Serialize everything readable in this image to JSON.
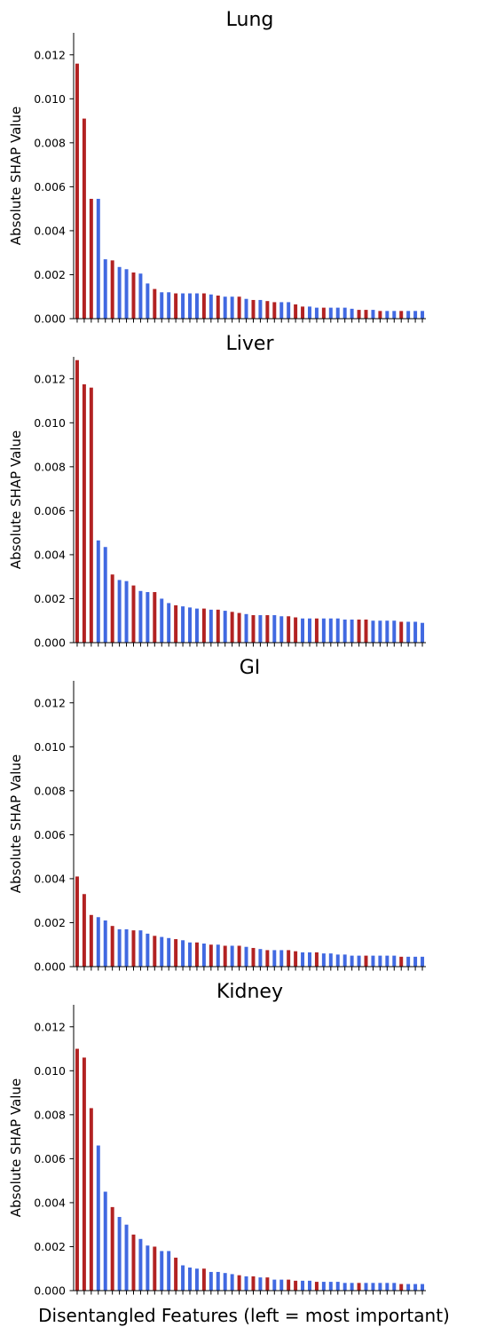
{
  "colors": {
    "red": "#b22222",
    "blue": "#4169e1",
    "axis": "#000000"
  },
  "xlabel": "Disentangled Features (left = most important)",
  "chart_data": [
    {
      "type": "bar",
      "title": "Lung",
      "ylabel": "Absolute SHAP Value",
      "ylim": [
        0,
        0.013
      ],
      "yticks": [
        0.0,
        0.002,
        0.004,
        0.006,
        0.008,
        0.01,
        0.012
      ],
      "ytick_labels": [
        "0.000",
        "0.002",
        "0.004",
        "0.006",
        "0.008",
        "0.010",
        "0.012"
      ],
      "values": [
        0.0116,
        0.0091,
        0.00545,
        0.00545,
        0.0027,
        0.00265,
        0.00235,
        0.00225,
        0.0021,
        0.00205,
        0.0016,
        0.00135,
        0.0012,
        0.0012,
        0.00115,
        0.00115,
        0.00115,
        0.00115,
        0.00115,
        0.0011,
        0.00105,
        0.001,
        0.001,
        0.001,
        0.0009,
        0.00085,
        0.00085,
        0.0008,
        0.00075,
        0.00075,
        0.00075,
        0.00065,
        0.00055,
        0.00055,
        0.0005,
        0.0005,
        0.0005,
        0.0005,
        0.0005,
        0.00045,
        0.0004,
        0.0004,
        0.0004,
        0.00035,
        0.00035,
        0.00035,
        0.00035,
        0.00035,
        0.00035,
        0.00035
      ],
      "colors": [
        "red",
        "red",
        "red",
        "blue",
        "blue",
        "red",
        "blue",
        "blue",
        "red",
        "blue",
        "blue",
        "red",
        "blue",
        "blue",
        "red",
        "blue",
        "blue",
        "blue",
        "red",
        "blue",
        "red",
        "blue",
        "blue",
        "red",
        "blue",
        "red",
        "blue",
        "red",
        "red",
        "blue",
        "blue",
        "red",
        "red",
        "blue",
        "blue",
        "red",
        "blue",
        "blue",
        "blue",
        "blue",
        "red",
        "red",
        "blue",
        "red",
        "blue",
        "blue",
        "red",
        "blue",
        "blue",
        "blue"
      ]
    },
    {
      "type": "bar",
      "title": "Liver",
      "ylabel": "Absolute SHAP Value",
      "ylim": [
        0,
        0.013
      ],
      "yticks": [
        0.0,
        0.002,
        0.004,
        0.006,
        0.008,
        0.01,
        0.012
      ],
      "ytick_labels": [
        "0.000",
        "0.002",
        "0.004",
        "0.006",
        "0.008",
        "0.010",
        "0.012"
      ],
      "values": [
        0.01285,
        0.01175,
        0.0116,
        0.00465,
        0.00435,
        0.0031,
        0.00285,
        0.0028,
        0.0026,
        0.00235,
        0.0023,
        0.0023,
        0.002,
        0.0018,
        0.0017,
        0.00165,
        0.0016,
        0.00155,
        0.00155,
        0.0015,
        0.0015,
        0.00145,
        0.0014,
        0.00135,
        0.0013,
        0.00125,
        0.00125,
        0.00125,
        0.00125,
        0.0012,
        0.0012,
        0.00115,
        0.0011,
        0.0011,
        0.0011,
        0.0011,
        0.0011,
        0.0011,
        0.00105,
        0.00105,
        0.00105,
        0.00105,
        0.001,
        0.001,
        0.001,
        0.001,
        0.00095,
        0.00095,
        0.00095,
        0.0009
      ],
      "colors": [
        "red",
        "red",
        "red",
        "blue",
        "blue",
        "red",
        "blue",
        "blue",
        "red",
        "blue",
        "blue",
        "red",
        "blue",
        "blue",
        "red",
        "blue",
        "blue",
        "blue",
        "red",
        "blue",
        "red",
        "blue",
        "red",
        "red",
        "blue",
        "red",
        "blue",
        "red",
        "blue",
        "blue",
        "red",
        "red",
        "blue",
        "blue",
        "red",
        "blue",
        "blue",
        "blue",
        "blue",
        "blue",
        "red",
        "red",
        "blue",
        "blue",
        "blue",
        "blue",
        "red",
        "blue",
        "blue",
        "blue"
      ]
    },
    {
      "type": "bar",
      "title": "GI",
      "ylabel": "Absolute SHAP Value",
      "ylim": [
        0,
        0.013
      ],
      "yticks": [
        0.0,
        0.002,
        0.004,
        0.006,
        0.008,
        0.01,
        0.012
      ],
      "ytick_labels": [
        "0.000",
        "0.002",
        "0.004",
        "0.006",
        "0.008",
        "0.010",
        "0.012"
      ],
      "values": [
        0.0041,
        0.0033,
        0.00235,
        0.00225,
        0.0021,
        0.00185,
        0.0017,
        0.0017,
        0.00165,
        0.00165,
        0.0015,
        0.0014,
        0.00135,
        0.0013,
        0.00125,
        0.0012,
        0.0011,
        0.0011,
        0.00105,
        0.001,
        0.001,
        0.00095,
        0.00095,
        0.00095,
        0.0009,
        0.00085,
        0.0008,
        0.00075,
        0.00075,
        0.00075,
        0.00075,
        0.0007,
        0.00065,
        0.00065,
        0.00065,
        0.0006,
        0.0006,
        0.00055,
        0.00055,
        0.0005,
        0.0005,
        0.0005,
        0.0005,
        0.0005,
        0.0005,
        0.0005,
        0.00045,
        0.00045,
        0.00045,
        0.00045
      ],
      "colors": [
        "red",
        "red",
        "red",
        "blue",
        "blue",
        "red",
        "blue",
        "blue",
        "red",
        "blue",
        "blue",
        "red",
        "blue",
        "blue",
        "red",
        "blue",
        "blue",
        "red",
        "blue",
        "red",
        "blue",
        "red",
        "blue",
        "red",
        "blue",
        "red",
        "blue",
        "red",
        "blue",
        "blue",
        "red",
        "red",
        "blue",
        "blue",
        "red",
        "blue",
        "blue",
        "blue",
        "blue",
        "blue",
        "blue",
        "red",
        "blue",
        "blue",
        "blue",
        "blue",
        "red",
        "blue",
        "blue",
        "blue"
      ]
    },
    {
      "type": "bar",
      "title": "Kidney",
      "ylabel": "Absolute SHAP Value",
      "ylim": [
        0,
        0.013
      ],
      "yticks": [
        0.0,
        0.002,
        0.004,
        0.006,
        0.008,
        0.01,
        0.012
      ],
      "ytick_labels": [
        "0.000",
        "0.002",
        "0.004",
        "0.006",
        "0.008",
        "0.010",
        "0.012"
      ],
      "values": [
        0.011,
        0.0106,
        0.0083,
        0.0066,
        0.0045,
        0.0038,
        0.00335,
        0.003,
        0.00255,
        0.00235,
        0.00205,
        0.002,
        0.0018,
        0.0018,
        0.0015,
        0.00115,
        0.00105,
        0.001,
        0.001,
        0.00085,
        0.00085,
        0.0008,
        0.00075,
        0.0007,
        0.00065,
        0.00065,
        0.0006,
        0.0006,
        0.0005,
        0.0005,
        0.0005,
        0.00045,
        0.00045,
        0.00045,
        0.0004,
        0.0004,
        0.0004,
        0.0004,
        0.00035,
        0.00035,
        0.00035,
        0.00035,
        0.00035,
        0.00035,
        0.00035,
        0.00035,
        0.0003,
        0.0003,
        0.0003,
        0.0003
      ],
      "colors": [
        "red",
        "red",
        "red",
        "blue",
        "blue",
        "red",
        "blue",
        "blue",
        "red",
        "blue",
        "blue",
        "red",
        "blue",
        "blue",
        "red",
        "blue",
        "blue",
        "blue",
        "red",
        "blue",
        "blue",
        "blue",
        "blue",
        "red",
        "blue",
        "red",
        "blue",
        "red",
        "blue",
        "blue",
        "red",
        "red",
        "blue",
        "blue",
        "red",
        "blue",
        "blue",
        "blue",
        "blue",
        "blue",
        "red",
        "blue",
        "blue",
        "blue",
        "blue",
        "blue",
        "red",
        "blue",
        "blue",
        "blue"
      ]
    }
  ]
}
